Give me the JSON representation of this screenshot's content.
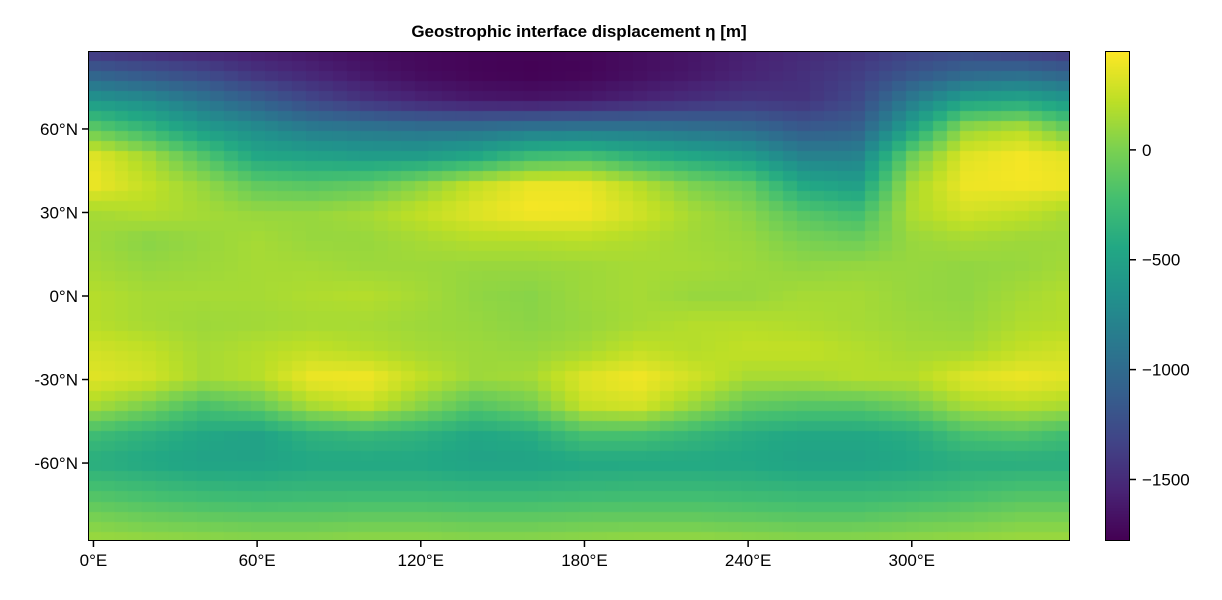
{
  "chart_data": {
    "type": "heatmap",
    "title": "Geostrophic interface displacement η [m]",
    "xlabel": "",
    "ylabel": "",
    "x_ticks": [
      {
        "value": 0,
        "label": "0°E"
      },
      {
        "value": 60,
        "label": "60°E"
      },
      {
        "value": 120,
        "label": "120°E"
      },
      {
        "value": 180,
        "label": "180°E"
      },
      {
        "value": 240,
        "label": "240°E"
      },
      {
        "value": 300,
        "label": "300°E"
      }
    ],
    "y_ticks": [
      {
        "value": 60,
        "label": "60°N"
      },
      {
        "value": 30,
        "label": "30°N"
      },
      {
        "value": 0,
        "label": "0°N"
      },
      {
        "value": -30,
        "label": "-30°N"
      },
      {
        "value": -60,
        "label": "-60°N"
      }
    ],
    "xlim": [
      -2,
      358
    ],
    "ylim": [
      -88,
      88
    ],
    "grid": false,
    "colormap": "viridis",
    "colorbar": {
      "range": [
        -1780,
        450
      ],
      "ticks": [
        {
          "value": 0,
          "label": "0"
        },
        {
          "value": -500,
          "label": "−500"
        },
        {
          "value": -1000,
          "label": "−1000"
        },
        {
          "value": -1500,
          "label": "−1500"
        }
      ]
    },
    "grid_lon": [
      0,
      20,
      40,
      60,
      80,
      100,
      120,
      140,
      160,
      180,
      200,
      220,
      240,
      260,
      280,
      300,
      320,
      340
    ],
    "grid_lat": [
      88,
      80,
      70,
      60,
      50,
      40,
      30,
      20,
      10,
      0,
      -10,
      -20,
      -30,
      -40,
      -50,
      -60,
      -70,
      -80,
      -88
    ],
    "values": [
      [
        -1450,
        -1500,
        -1550,
        -1600,
        -1650,
        -1700,
        -1730,
        -1750,
        -1760,
        -1740,
        -1700,
        -1650,
        -1580,
        -1520,
        -1450,
        -1350,
        -1300,
        -1380
      ],
      [
        -1100,
        -1200,
        -1300,
        -1450,
        -1550,
        -1650,
        -1720,
        -1760,
        -1780,
        -1760,
        -1700,
        -1640,
        -1560,
        -1480,
        -1380,
        -1200,
        -1050,
        -1000
      ],
      [
        -600,
        -700,
        -900,
        -1100,
        -1300,
        -1450,
        -1550,
        -1620,
        -1650,
        -1620,
        -1550,
        -1480,
        -1420,
        -1450,
        -1300,
        -850,
        -500,
        -450
      ],
      [
        -100,
        -300,
        -550,
        -700,
        -850,
        -900,
        -950,
        -950,
        -900,
        -900,
        -900,
        -950,
        -1000,
        -1150,
        -1100,
        -500,
        100,
        200
      ],
      [
        350,
        150,
        -150,
        -450,
        -500,
        -550,
        -550,
        -450,
        -250,
        -200,
        -350,
        -450,
        -550,
        -800,
        -800,
        -50,
        350,
        420
      ],
      [
        400,
        250,
        100,
        -100,
        -150,
        -100,
        50,
        250,
        380,
        380,
        200,
        0,
        -100,
        -450,
        -550,
        150,
        400,
        420
      ],
      [
        150,
        200,
        150,
        100,
        100,
        150,
        250,
        350,
        430,
        420,
        300,
        150,
        50,
        -150,
        -250,
        180,
        300,
        250
      ],
      [
        120,
        50,
        100,
        150,
        100,
        100,
        150,
        200,
        200,
        220,
        180,
        130,
        100,
        0,
        -50,
        100,
        150,
        120
      ],
      [
        150,
        100,
        120,
        150,
        150,
        120,
        120,
        100,
        100,
        120,
        150,
        150,
        120,
        80,
        100,
        100,
        80,
        100
      ],
      [
        200,
        150,
        150,
        150,
        180,
        200,
        150,
        80,
        50,
        120,
        150,
        100,
        100,
        150,
        150,
        100,
        80,
        150
      ],
      [
        200,
        150,
        120,
        130,
        150,
        150,
        120,
        100,
        60,
        100,
        150,
        200,
        200,
        180,
        150,
        120,
        100,
        180
      ],
      [
        300,
        250,
        150,
        200,
        250,
        200,
        150,
        120,
        100,
        150,
        250,
        200,
        250,
        250,
        200,
        150,
        150,
        250
      ],
      [
        350,
        300,
        150,
        200,
        400,
        420,
        250,
        120,
        150,
        350,
        420,
        300,
        150,
        150,
        200,
        200,
        350,
        400
      ],
      [
        150,
        0,
        -200,
        -100,
        150,
        250,
        50,
        -150,
        -50,
        250,
        300,
        100,
        -100,
        -150,
        -150,
        -50,
        150,
        200
      ],
      [
        -250,
        -350,
        -450,
        -500,
        -350,
        -300,
        -350,
        -450,
        -400,
        -200,
        -200,
        -300,
        -400,
        -450,
        -450,
        -400,
        -200,
        -150
      ],
      [
        -400,
        -450,
        -500,
        -500,
        -450,
        -450,
        -450,
        -500,
        -500,
        -450,
        -450,
        -450,
        -450,
        -500,
        -500,
        -450,
        -400,
        -400
      ],
      [
        -200,
        -250,
        -300,
        -320,
        -300,
        -300,
        -300,
        -320,
        -320,
        -300,
        -280,
        -280,
        -300,
        -320,
        -320,
        -300,
        -250,
        -200
      ],
      [
        0,
        -50,
        -80,
        -100,
        -100,
        -80,
        -80,
        -100,
        -100,
        -80,
        -80,
        -80,
        -100,
        -120,
        -120,
        -80,
        -50,
        0
      ],
      [
        120,
        100,
        80,
        60,
        60,
        80,
        80,
        60,
        60,
        80,
        100,
        100,
        80,
        60,
        60,
        80,
        100,
        120
      ]
    ]
  }
}
